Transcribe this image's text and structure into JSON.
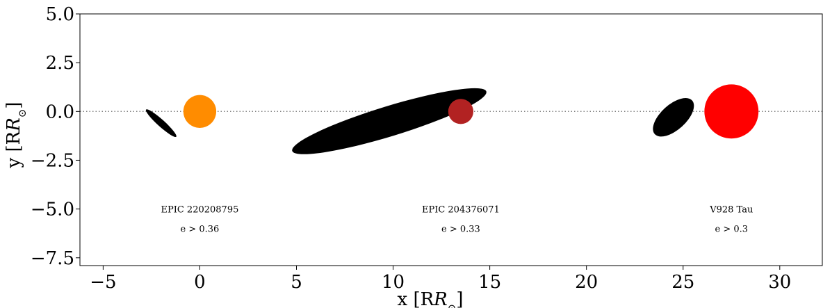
{
  "chart_data": {
    "type": "scatter",
    "title": "",
    "xlabel": "x [R",
    "xlabel_sub": "⊙",
    "xlabel_close": "]",
    "ylabel": "y [R",
    "ylabel_sub": "⊙",
    "ylabel_close": "]",
    "xlim": [
      -6.2,
      32.2
    ],
    "ylim": [
      -7.9,
      5.0
    ],
    "xticks": [
      -5,
      0,
      5,
      10,
      15,
      20,
      25,
      30
    ],
    "xtick_labels": [
      "−5",
      "0",
      "5",
      "10",
      "15",
      "20",
      "25",
      "30"
    ],
    "yticks": [
      5.0,
      2.5,
      0.0,
      -2.5,
      -5.0,
      -7.5
    ],
    "ytick_labels": [
      "5.0",
      "2.5",
      "0.0",
      "−2.5",
      "−5.0",
      "−7.5"
    ],
    "reference_line": {
      "y": 0.0,
      "style": "dotted",
      "color": "#808080"
    },
    "grid": false,
    "systems": [
      {
        "name": "EPIC 220208795",
        "eccentricity": "e > 0.36",
        "label_x": 0.0,
        "label_y1": -5.0,
        "label_y2": -6.0,
        "star": {
          "x": 0.0,
          "y": 0.0,
          "radius": 0.85,
          "color": "#ff8c00"
        },
        "disk": {
          "x": -2.0,
          "y": -0.6,
          "semi_major": 1.05,
          "semi_minor": 0.18,
          "angle_deg": -42,
          "color": "#000000"
        }
      },
      {
        "name": "EPIC 204376071",
        "eccentricity": "e > 0.33",
        "label_x": 13.5,
        "label_y1": -5.0,
        "label_y2": -6.0,
        "star": {
          "x": 13.5,
          "y": 0.0,
          "radius": 0.65,
          "color": "#b22222"
        },
        "disk": {
          "x": 9.8,
          "y": -0.5,
          "semi_major": 5.25,
          "semi_minor": 0.78,
          "angle_deg": 17,
          "color": "#000000"
        }
      },
      {
        "name": "V928 Tau",
        "eccentricity": "e > 0.3",
        "label_x": 27.5,
        "label_y1": -5.0,
        "label_y2": -6.0,
        "star": {
          "x": 27.5,
          "y": 0.0,
          "radius": 1.4,
          "color": "#ff0000"
        },
        "disk": {
          "x": 24.5,
          "y": -0.3,
          "semi_major": 1.3,
          "semi_minor": 0.65,
          "angle_deg": 42,
          "color": "#000000"
        }
      }
    ]
  }
}
